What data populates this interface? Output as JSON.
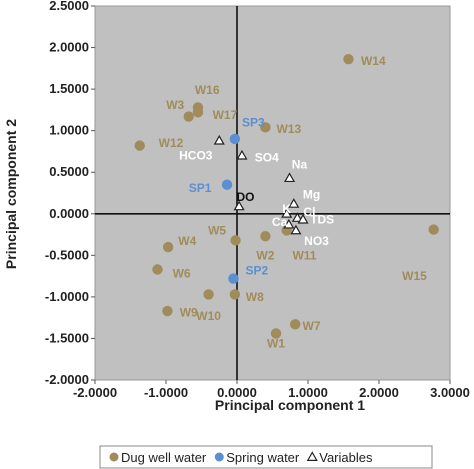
{
  "chart_data": {
    "type": "scatter",
    "xlabel": "Principal component 1",
    "ylabel": "Principal component 2",
    "xlim": [
      -2.0,
      3.0
    ],
    "ylim": [
      -2.0,
      2.5
    ],
    "x_ticks": [
      -2.0,
      -1.0,
      0.0,
      1.0,
      2.0,
      3.0
    ],
    "y_ticks": [
      -2.0,
      -1.5,
      -1.0,
      -0.5,
      0.0,
      0.5,
      1.0,
      1.5,
      2.0,
      2.5
    ],
    "x_tick_labels": [
      "-2.0000",
      "-1.0000",
      "0.0000",
      "1.0000",
      "2.0000",
      "3.0000"
    ],
    "y_tick_labels": [
      "-2.0000",
      "-1.5000",
      "-1.0000",
      "-0.5000",
      "0.0000",
      "0.5000",
      "1.0000",
      "1.5000",
      "2.0000",
      "2.5000"
    ],
    "grid": false,
    "legend_position": "bottom",
    "plot_background": "#c0c0c0",
    "series": [
      {
        "name": "Dug well water",
        "marker": "circle",
        "color": "#a08c5a",
        "label_color": "#a08c5a",
        "points": [
          {
            "label": "W1",
            "x": 0.55,
            "y": -1.44,
            "lx": 0.55,
            "ly": -1.56
          },
          {
            "label": "W2",
            "x": 0.4,
            "y": -0.27,
            "lx": 0.4,
            "ly": -0.5
          },
          {
            "label": "W3",
            "x": -0.55,
            "y": 1.28,
            "lx": -0.87,
            "ly": 1.31
          },
          {
            "label": "W4",
            "x": -0.97,
            "y": -0.4,
            "lx": -0.7,
            "ly": -0.33
          },
          {
            "label": "W5",
            "x": -0.02,
            "y": -0.32,
            "lx": -0.28,
            "ly": -0.2
          },
          {
            "label": "W6",
            "x": -1.12,
            "y": -0.67,
            "lx": -0.78,
            "ly": -0.72
          },
          {
            "label": "W7",
            "x": 0.82,
            "y": -1.33,
            "lx": 1.05,
            "ly": -1.35
          },
          {
            "label": "W8",
            "x": -0.03,
            "y": -0.97,
            "lx": 0.25,
            "ly": -1.0
          },
          {
            "label": "W9",
            "x": -0.98,
            "y": -1.17,
            "lx": -0.68,
            "ly": -1.19
          },
          {
            "label": "W10",
            "x": -0.4,
            "y": -0.97,
            "lx": -0.4,
            "ly": -1.23
          },
          {
            "label": "W11",
            "x": 0.7,
            "y": -0.2,
            "lx": 0.95,
            "ly": -0.5
          },
          {
            "label": "W12",
            "x": -1.37,
            "y": 0.82,
            "lx": -0.93,
            "ly": 0.85
          },
          {
            "label": "W13",
            "x": 0.4,
            "y": 1.04,
            "lx": 0.73,
            "ly": 1.02
          },
          {
            "label": "W14",
            "x": 1.57,
            "y": 1.86,
            "lx": 1.92,
            "ly": 1.84
          },
          {
            "label": "W15",
            "x": 2.77,
            "y": -0.19,
            "lx": 2.5,
            "ly": -0.75
          },
          {
            "label": "W16",
            "x": -0.55,
            "y": 1.22,
            "lx": -0.42,
            "ly": 1.49
          },
          {
            "label": "W17",
            "x": -0.68,
            "y": 1.17,
            "lx": -0.17,
            "ly": 1.19
          }
        ]
      },
      {
        "name": "Spring water",
        "marker": "circle",
        "color": "#5b8fd1",
        "label_color": "#5b8fd1",
        "points": [
          {
            "label": "SP1",
            "x": -0.14,
            "y": 0.35,
            "lx": -0.52,
            "ly": 0.31
          },
          {
            "label": "SP2",
            "x": -0.05,
            "y": -0.78,
            "lx": 0.28,
            "ly": -0.68
          },
          {
            "label": "SP3",
            "x": -0.03,
            "y": 0.9,
            "lx": 0.23,
            "ly": 1.1
          }
        ]
      },
      {
        "name": "Variables",
        "marker": "triangle",
        "color": "#222222",
        "label_color": "#ffffff",
        "points": [
          {
            "label": "HCO3",
            "x": -0.25,
            "y": 0.88,
            "lx": -0.58,
            "ly": 0.7
          },
          {
            "label": "SO4",
            "x": 0.07,
            "y": 0.7,
            "lx": 0.42,
            "ly": 0.68
          },
          {
            "label": "Na",
            "x": 0.74,
            "y": 0.43,
            "lx": 0.88,
            "ly": 0.59
          },
          {
            "label": "DO",
            "x": 0.03,
            "y": 0.09,
            "lx": 0.12,
            "ly": 0.2,
            "label_color": "#111111"
          },
          {
            "label": "Mg",
            "x": 0.8,
            "y": 0.12,
            "lx": 1.05,
            "ly": 0.23
          },
          {
            "label": "K",
            "x": 0.7,
            "y": 0.0,
            "lx": 0.7,
            "ly": 0.06
          },
          {
            "label": "Cl",
            "x": 0.85,
            "y": -0.05,
            "lx": 1.02,
            "ly": 0.02
          },
          {
            "label": "Ca",
            "x": 0.73,
            "y": -0.13,
            "lx": 0.6,
            "ly": -0.1
          },
          {
            "label": "TDS",
            "x": 0.93,
            "y": -0.07,
            "lx": 1.2,
            "ly": -0.07
          },
          {
            "label": "NO3",
            "x": 0.83,
            "y": -0.2,
            "lx": 1.12,
            "ly": -0.33
          }
        ]
      }
    ]
  }
}
